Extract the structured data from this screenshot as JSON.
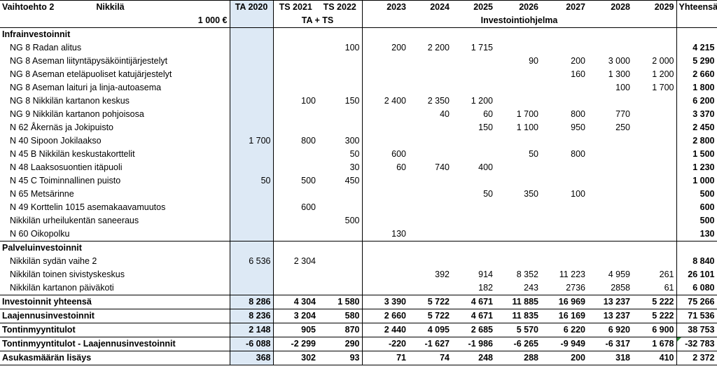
{
  "header": {
    "title_a": "Vaihtoehto 2",
    "title_b": "Nikkilä",
    "unit": "1 000 €",
    "cols": [
      "TA 2020",
      "TS 2021",
      "TS 2022",
      "2023",
      "2024",
      "2025",
      "2026",
      "2027",
      "2028",
      "2029",
      "Yhteensä"
    ],
    "group_ta_ts": "TA + TS",
    "group_prog": "Investointiohjelma"
  },
  "sections": [
    {
      "title": "Infrainvestoinnit",
      "rows": [
        {
          "label": "NG 8 Radan alitus",
          "v": [
            "",
            "",
            "100",
            "200",
            "2 200",
            "1 715",
            "",
            "",
            "",
            "",
            "4 215"
          ]
        },
        {
          "label": "NG 8 Aseman liityntäpysäköintijärjestelyt",
          "v": [
            "",
            "",
            "",
            "",
            "",
            "",
            "90",
            "200",
            "3 000",
            "2 000",
            "5 290"
          ]
        },
        {
          "label": "NG 8 Aseman eteläpuoliset katujärjestelyt",
          "v": [
            "",
            "",
            "",
            "",
            "",
            "",
            "",
            "160",
            "1 300",
            "1 200",
            "2 660"
          ]
        },
        {
          "label": "NG 8 Aseman laituri ja linja-autoasema",
          "v": [
            "",
            "",
            "",
            "",
            "",
            "",
            "",
            "",
            "100",
            "1 700",
            "1 800"
          ]
        },
        {
          "label": "NG 8 Nikkilän kartanon keskus",
          "v": [
            "",
            "100",
            "150",
            "2 400",
            "2 350",
            "1 200",
            "",
            "",
            "",
            "",
            "6 200"
          ]
        },
        {
          "label": "NG 9 Nikkilän kartanon pohjoisosa",
          "v": [
            "",
            "",
            "",
            "",
            "40",
            "60",
            "1 700",
            "800",
            "770",
            "",
            "3 370"
          ]
        },
        {
          "label": "N 62 Åkernäs ja Jokipuisto",
          "v": [
            "",
            "",
            "",
            "",
            "",
            "150",
            "1 100",
            "950",
            "250",
            "",
            "2 450"
          ]
        },
        {
          "label": "N 40 Sipoon Jokilaakso",
          "v": [
            "1 700",
            "800",
            "300",
            "",
            "",
            "",
            "",
            "",
            "",
            "",
            "2 800"
          ]
        },
        {
          "label": "N 45 B Nikkilän keskustakorttelit",
          "v": [
            "",
            "",
            "50",
            "600",
            "",
            "",
            "50",
            "800",
            "",
            "",
            "1 500"
          ]
        },
        {
          "label": "N 48 Laaksosuontien itäpuoli",
          "v": [
            "",
            "",
            "30",
            "60",
            "740",
            "400",
            "",
            "",
            "",
            "",
            "1 230"
          ]
        },
        {
          "label": "N 45 C Toiminnallinen puisto",
          "v": [
            "50",
            "500",
            "450",
            "",
            "",
            "",
            "",
            "",
            "",
            "",
            "1 000"
          ]
        },
        {
          "label": "N 65 Metsärinne",
          "v": [
            "",
            "",
            "",
            "",
            "",
            "50",
            "350",
            "100",
            "",
            "",
            "500"
          ]
        },
        {
          "label": "N 49 Korttelin 1015 asemakaavamuutos",
          "v": [
            "",
            "600",
            "",
            "",
            "",
            "",
            "",
            "",
            "",
            "",
            "600"
          ]
        },
        {
          "label": "Nikkilän urheilukentän saneeraus",
          "v": [
            "",
            "",
            "500",
            "",
            "",
            "",
            "",
            "",
            "",
            "",
            "500"
          ]
        },
        {
          "label": "N 60 Oikopolku",
          "v": [
            "",
            "",
            "",
            "130",
            "",
            "",
            "",
            "",
            "",
            "",
            "130"
          ]
        }
      ]
    },
    {
      "title": "Palveluinvestoinnit",
      "rows": [
        {
          "label": "Nikkilän sydän vaihe 2",
          "v": [
            "6 536",
            "2 304",
            "",
            "",
            "",
            "",
            "",
            "",
            "",
            "",
            "8 840"
          ]
        },
        {
          "label": "Nikkilän toinen sivistyskeskus",
          "v": [
            "",
            "",
            "",
            "",
            "392",
            "914",
            "8 352",
            "11 223",
            "4 959",
            "261",
            "26 101"
          ]
        },
        {
          "label": "Nikkilän kartanon päiväkoti",
          "v": [
            "",
            "",
            "",
            "",
            "",
            "182",
            "243",
            "2736",
            "2858",
            "61",
            "6 080"
          ]
        }
      ]
    }
  ],
  "totals": [
    {
      "label": "Investoinnit yhteensä",
      "v": [
        "8 286",
        "4 304",
        "1 580",
        "3 390",
        "5 722",
        "4 671",
        "11 885",
        "16 969",
        "13 237",
        "5 222",
        "75 266"
      ]
    },
    {
      "label": "Laajennusinvestoinnit",
      "v": [
        "8 236",
        "3 204",
        "580",
        "2 660",
        "5 722",
        "4 671",
        "11 835",
        "16 169",
        "13 237",
        "5 222",
        "71 536"
      ]
    },
    {
      "label": "Tontinmyyntitulot",
      "v": [
        "2 148",
        "905",
        "870",
        "2 440",
        "4 095",
        "2 685",
        "5 570",
        "6 220",
        "6 920",
        "6 900",
        "38 753"
      ]
    },
    {
      "label": "Tontinmyyntitulot - Laajennusinvestoinnit",
      "v": [
        "-6 088",
        "-2 299",
        "290",
        "-220",
        "-1 627",
        "-1 986",
        "-6 265",
        "-9 949",
        "-6 317",
        "1 678",
        "-32 783"
      ]
    },
    {
      "label": "Asukasmäärän lisäys",
      "v": [
        "368",
        "302",
        "93",
        "71",
        "74",
        "248",
        "288",
        "200",
        "318",
        "410",
        "2 372"
      ]
    }
  ]
}
